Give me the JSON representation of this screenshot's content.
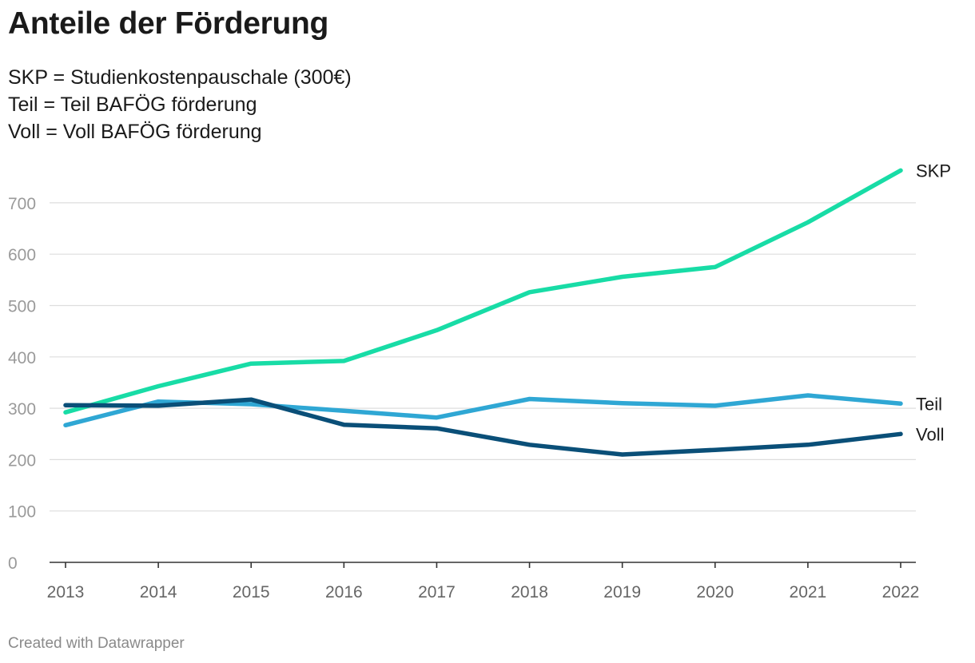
{
  "title": "Anteile der Förderung",
  "subtitle_lines": [
    "SKP = Studienkostenpauschale (300€)",
    "Teil = Teil BAFÖG förderung",
    "Voll = Voll BAFÖG förderung"
  ],
  "footer": "Created with Datawrapper",
  "chart_data": {
    "type": "line",
    "title": "Anteile der Förderung",
    "xlabel": "",
    "ylabel": "",
    "x": [
      "2013",
      "2014",
      "2015",
      "2016",
      "2017",
      "2018",
      "2019",
      "2020",
      "2021",
      "2022"
    ],
    "ylim": [
      0,
      700
    ],
    "yticks": [
      0,
      100,
      200,
      300,
      400,
      500,
      600,
      700
    ],
    "grid": true,
    "series": [
      {
        "name": "SKP",
        "color": "#18dca6",
        "values": [
          292,
          343,
          387,
          392,
          452,
          526,
          556,
          575,
          662,
          763
        ]
      },
      {
        "name": "Teil",
        "color": "#2fa7d4",
        "values": [
          267,
          313,
          308,
          295,
          282,
          318,
          310,
          305,
          325,
          309
        ]
      },
      {
        "name": "Voll",
        "color": "#0a4f78",
        "values": [
          306,
          305,
          317,
          268,
          261,
          229,
          210,
          219,
          229,
          250
        ]
      }
    ]
  }
}
